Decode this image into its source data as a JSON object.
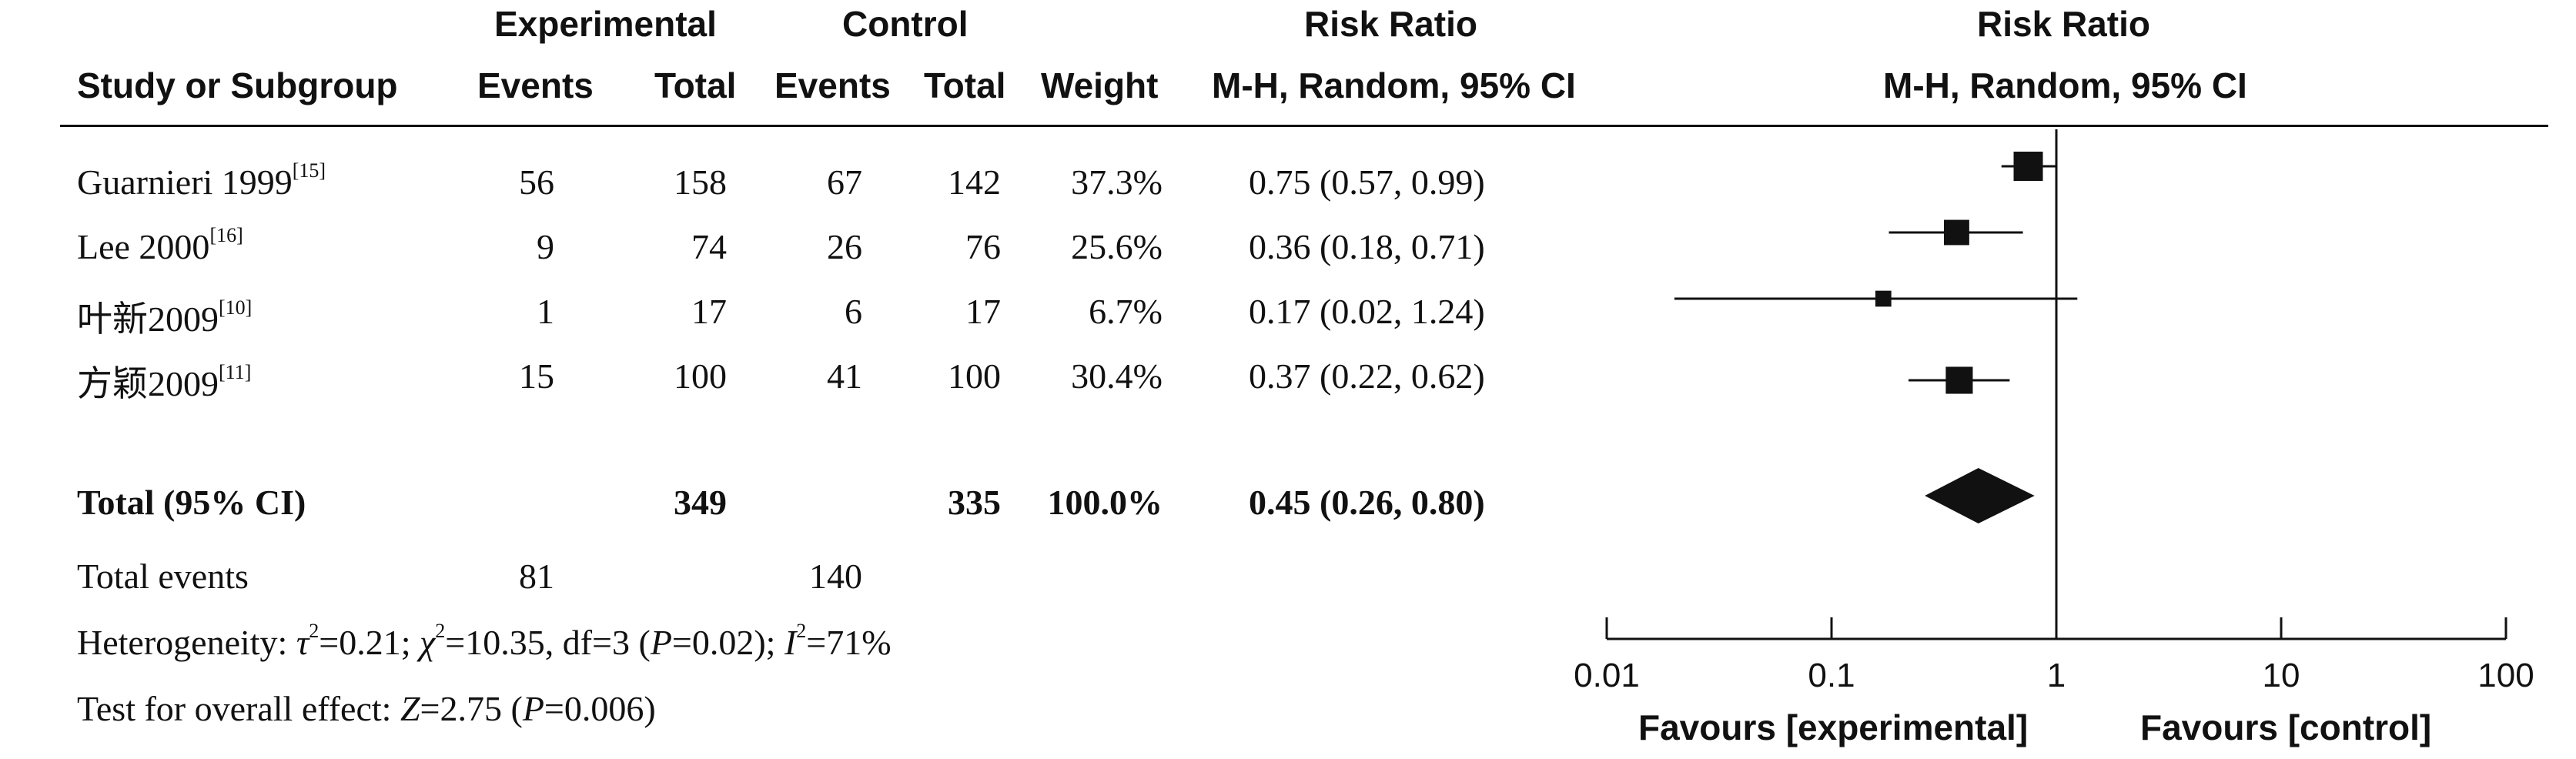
{
  "header": {
    "group_experimental": "Experimental",
    "group_control": "Control",
    "risk_ratio_title": "Risk Ratio",
    "plot_title": "Risk Ratio",
    "col_study": "Study or Subgroup",
    "col_exp_events": "Events",
    "col_exp_total": "Total",
    "col_ctl_events": "Events",
    "col_ctl_total": "Total",
    "col_weight": "Weight",
    "col_method": "M-H, Random, 95% CI",
    "plot_method": "M-H, Random, 95% CI"
  },
  "studies": [
    {
      "name": "Guarnieri 1999",
      "ref": "[15]",
      "exp_events": "56",
      "exp_total": "158",
      "ctl_events": "67",
      "ctl_total": "142",
      "weight": "37.3%",
      "ci_text": "0.75 (0.57, 0.99)"
    },
    {
      "name": "Lee 2000",
      "ref": "[16]",
      "exp_events": "9",
      "exp_total": "74",
      "ctl_events": "26",
      "ctl_total": "76",
      "weight": "25.6%",
      "ci_text": "0.36 (0.18, 0.71)"
    },
    {
      "name": "叶新2009",
      "ref": "[10]",
      "exp_events": "1",
      "exp_total": "17",
      "ctl_events": "6",
      "ctl_total": "17",
      "weight": "6.7%",
      "ci_text": "0.17 (0.02, 1.24)"
    },
    {
      "name": "方颖2009",
      "ref": "[11]",
      "exp_events": "15",
      "exp_total": "100",
      "ctl_events": "41",
      "ctl_total": "100",
      "weight": "30.4%",
      "ci_text": "0.37 (0.22, 0.62)"
    }
  ],
  "total": {
    "label": "Total (95% CI)",
    "exp_total": "349",
    "ctl_total": "335",
    "weight": "100.0%",
    "ci_text": "0.45 (0.26, 0.80)"
  },
  "total_events": {
    "label": "Total events",
    "exp": "81",
    "ctl": "140"
  },
  "heterogeneity": {
    "prefix": "Heterogeneity: ",
    "tau": "τ",
    "tau_val": "=0.21; ",
    "chi": "χ",
    "chi_val": "=10.35, df=3 (",
    "p": "P",
    "p_val": "=0.02); ",
    "i": "I",
    "i_val": "=71%"
  },
  "overall": {
    "prefix": "Test for overall effect: ",
    "z": "Z",
    "z_val": "=2.75 (",
    "p": "P",
    "p_val": "=0.006)"
  },
  "axis": {
    "favours_left": "Favours [experimental]",
    "favours_right": "Favours [control]"
  },
  "chart_data": {
    "type": "forest",
    "scale": "log",
    "xlim": [
      0.01,
      100
    ],
    "ticks": [
      0.01,
      0.1,
      1,
      10,
      100
    ],
    "tick_labels": [
      "0.01",
      "0.1",
      "1",
      "10",
      "100"
    ],
    "null_line": 1,
    "studies": [
      {
        "rr": 0.75,
        "lo": 0.57,
        "hi": 0.99,
        "weight": 37.3
      },
      {
        "rr": 0.36,
        "lo": 0.18,
        "hi": 0.71,
        "weight": 25.6
      },
      {
        "rr": 0.17,
        "lo": 0.02,
        "hi": 1.24,
        "weight": 6.7
      },
      {
        "rr": 0.37,
        "lo": 0.22,
        "hi": 0.62,
        "weight": 30.4
      }
    ],
    "pooled": {
      "rr": 0.45,
      "lo": 0.26,
      "hi": 0.8
    }
  }
}
